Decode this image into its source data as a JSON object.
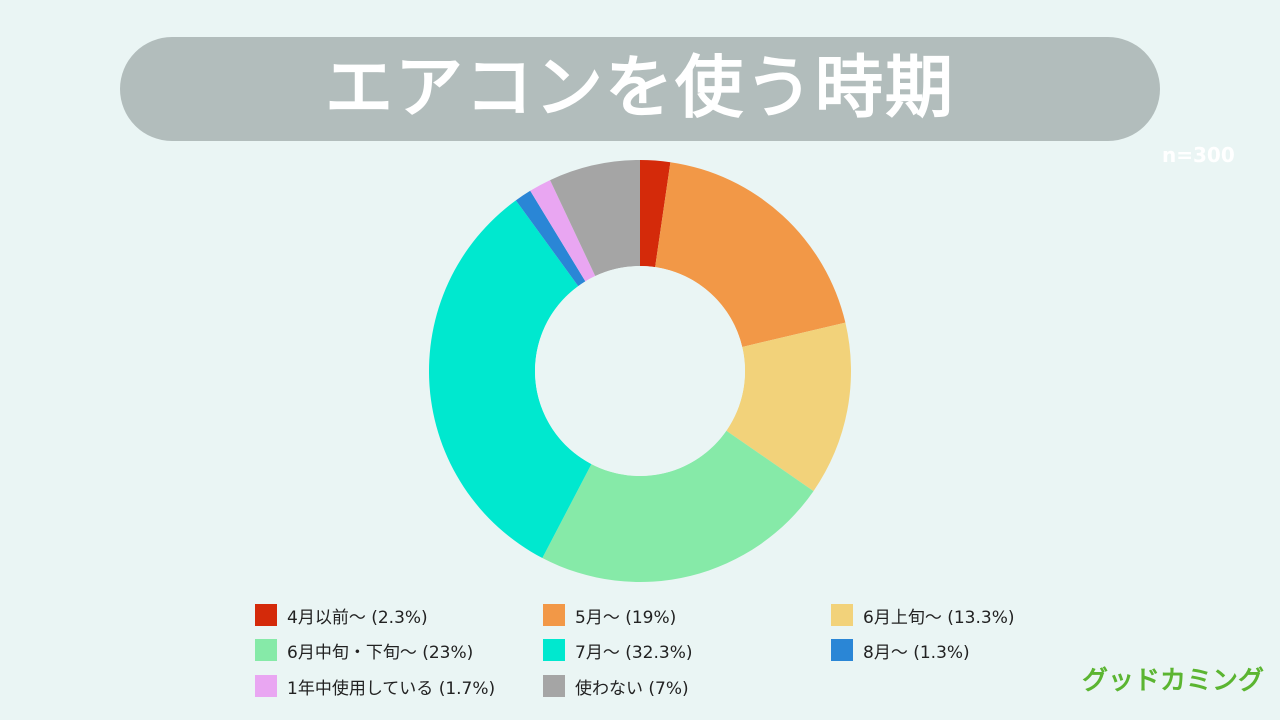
{
  "title": "エアコンを使う時期",
  "sample": "n=300",
  "brand": "グッドカミング",
  "chart_data": {
    "type": "pie",
    "variant": "donut",
    "legend_position": "bottom",
    "slices": [
      {
        "label": "4月以前〜 (2.3%)",
        "value": 2.3,
        "color": "#d42a0a"
      },
      {
        "label": "5月〜 (19%)",
        "value": 19,
        "color": "#f29847"
      },
      {
        "label": "6月上旬〜 (13.3%)",
        "value": 13.3,
        "color": "#f2d27a"
      },
      {
        "label": "6月中旬・下旬〜 (23%)",
        "value": 23,
        "color": "#86eaa8"
      },
      {
        "label": "7月〜 (32.3%)",
        "value": 32.3,
        "color": "#00e8cf"
      },
      {
        "label": "8月〜 (1.3%)",
        "value": 1.3,
        "color": "#2a86d6"
      },
      {
        "label": "1年中使用している (1.7%)",
        "value": 1.7,
        "color": "#e9a6f2"
      },
      {
        "label": "使わない (7%)",
        "value": 7,
        "color": "#a5a5a5"
      }
    ]
  }
}
